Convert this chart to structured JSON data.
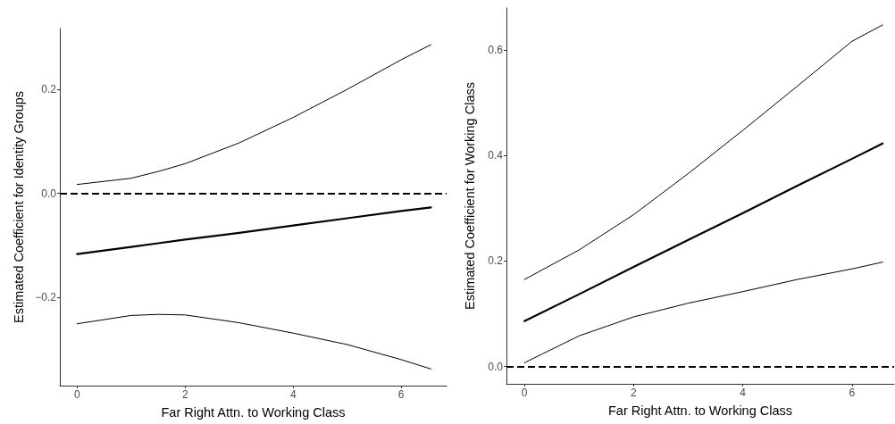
{
  "chart_data": [
    {
      "type": "line",
      "xlabel": "Far Right Attn. to Working Class",
      "ylabel": "Estimated Coefficient for Identity Groups",
      "xlim": [
        -0.32,
        6.84
      ],
      "xticks": [
        0,
        2,
        4,
        6
      ],
      "ylim": [
        -0.37,
        0.317
      ],
      "yticks": [
        {
          "value": -0.2,
          "label": "−0.2"
        },
        {
          "value": 0,
          "label": "0.0"
        },
        {
          "value": 0.2,
          "label": "0.2"
        }
      ],
      "grid": false,
      "marker": "none",
      "line_style": "solid",
      "x": [
        0,
        1,
        1.5,
        2,
        3,
        4,
        5,
        6,
        6.55
      ],
      "series": [
        {
          "color": "#000000",
          "values": [
            -0.117,
            -0.103,
            -0.096,
            -0.089,
            -0.076,
            -0.062,
            -0.048,
            -0.034,
            -0.027
          ]
        },
        {
          "color": "#000000",
          "values": [
            0.017,
            0.029,
            0.042,
            0.057,
            0.097,
            0.146,
            0.2,
            0.257,
            0.286
          ]
        },
        {
          "color": "#000000",
          "values": [
            -0.251,
            -0.235,
            -0.233,
            -0.234,
            -0.249,
            -0.269,
            -0.291,
            -0.32,
            -0.338
          ]
        }
      ],
      "ref_lines": [
        {
          "axis": "y",
          "value": 0,
          "color": "#000000",
          "line_style": "dashed"
        }
      ]
    },
    {
      "type": "line",
      "xlabel": "Far Right Attn. to Working Class",
      "ylabel": "Estimated Coefficient for Working Class",
      "xlim": [
        -0.33,
        6.77
      ],
      "xticks": [
        0,
        2,
        4,
        6
      ],
      "ylim": [
        -0.033,
        0.68
      ],
      "yticks": [
        {
          "value": 0,
          "label": "0.0"
        },
        {
          "value": 0.2,
          "label": "0.2"
        },
        {
          "value": 0.4,
          "label": "0.4"
        },
        {
          "value": 0.6,
          "label": "0.6"
        }
      ],
      "grid": false,
      "marker": "none",
      "line_style": "solid",
      "x": [
        0,
        1,
        2,
        3,
        4,
        5,
        6,
        6.56
      ],
      "series": [
        {
          "color": "#000000",
          "values": [
            0.086,
            0.137,
            0.189,
            0.24,
            0.291,
            0.343,
            0.394,
            0.423
          ]
        },
        {
          "color": "#000000",
          "values": [
            0.165,
            0.221,
            0.288,
            0.366,
            0.448,
            0.532,
            0.617,
            0.648
          ]
        },
        {
          "color": "#000000",
          "values": [
            0.007,
            0.058,
            0.094,
            0.12,
            0.142,
            0.165,
            0.185,
            0.198
          ]
        }
      ],
      "ref_lines": [
        {
          "axis": "y",
          "value": 0,
          "color": "#000000",
          "line_style": "dashed"
        }
      ]
    }
  ]
}
